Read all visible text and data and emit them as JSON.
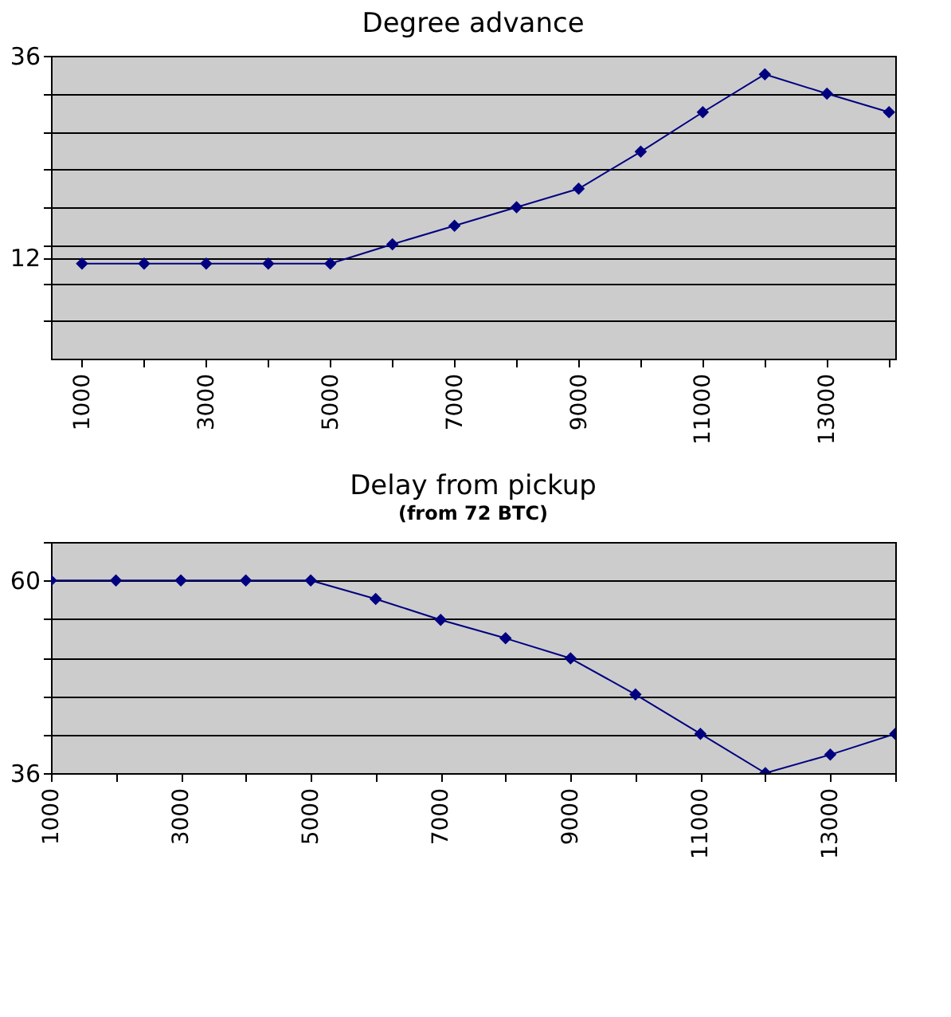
{
  "chart_data": [
    {
      "type": "line",
      "title": "Degree advance",
      "x": [
        1000,
        2000,
        3000,
        4000,
        5000,
        6000,
        7000,
        8000,
        9000,
        10000,
        11000,
        12000,
        13000,
        14000
      ],
      "series": [
        {
          "color": "#000080",
          "values": [
            11.3,
            11.3,
            11.3,
            11.3,
            11.3,
            13.6,
            15.8,
            18.0,
            20.2,
            24.6,
            29.3,
            33.8,
            31.5,
            29.3
          ]
        }
      ],
      "xlim": [
        500,
        14100
      ],
      "xticks": [
        1000,
        {
          "value": 2000,
          "label": null
        },
        3000,
        {
          "value": 4000,
          "label": null
        },
        5000,
        {
          "value": 6000,
          "label": null
        },
        7000,
        {
          "value": 8000,
          "label": null
        },
        9000,
        {
          "value": 10000,
          "label": null
        },
        11000,
        {
          "value": 12000,
          "label": null
        },
        13000,
        {
          "value": 14000,
          "label": null
        }
      ],
      "ylim": [
        0,
        36
      ],
      "yticks": [
        {
          "value": 4.5,
          "label": null
        },
        {
          "value": 9,
          "label": null
        },
        12,
        {
          "value": 13.5,
          "label": null
        },
        {
          "value": 18,
          "label": null
        },
        {
          "value": 22.5,
          "label": null
        },
        {
          "value": 27,
          "label": null
        },
        {
          "value": 31.5,
          "label": null
        },
        36
      ],
      "grid": "y",
      "marker": "diamond",
      "line_style": "solid"
    },
    {
      "type": "line",
      "title": "Delay from pickup",
      "subtitle": "(from 72 BTC)",
      "x": [
        1000,
        2000,
        3000,
        4000,
        5000,
        6000,
        7000,
        8000,
        9000,
        10000,
        11000,
        12000,
        13000,
        14000
      ],
      "series": [
        {
          "color": "#000080",
          "values": [
            60,
            60,
            60,
            60,
            60,
            57.7,
            55.1,
            52.8,
            50.3,
            45.8,
            40.9,
            36,
            38.3,
            40.9
          ]
        }
      ],
      "xlim": [
        1000,
        14000
      ],
      "xticks": [
        1000,
        {
          "value": 2000,
          "label": null
        },
        3000,
        {
          "value": 4000,
          "label": null
        },
        5000,
        {
          "value": 6000,
          "label": null
        },
        7000,
        {
          "value": 8000,
          "label": null
        },
        9000,
        {
          "value": 10000,
          "label": null
        },
        11000,
        {
          "value": 12000,
          "label": null
        },
        13000,
        {
          "value": 14000,
          "label": null
        }
      ],
      "ylim": [
        36,
        64.8
      ],
      "yticks": [
        36,
        {
          "value": 40.8,
          "label": null
        },
        {
          "value": 45.6,
          "label": null
        },
        {
          "value": 50.4,
          "label": null
        },
        {
          "value": 55.2,
          "label": null
        },
        60,
        {
          "value": 64.8,
          "label": null
        }
      ],
      "grid": "y",
      "marker": "diamond",
      "line_style": "solid"
    }
  ]
}
